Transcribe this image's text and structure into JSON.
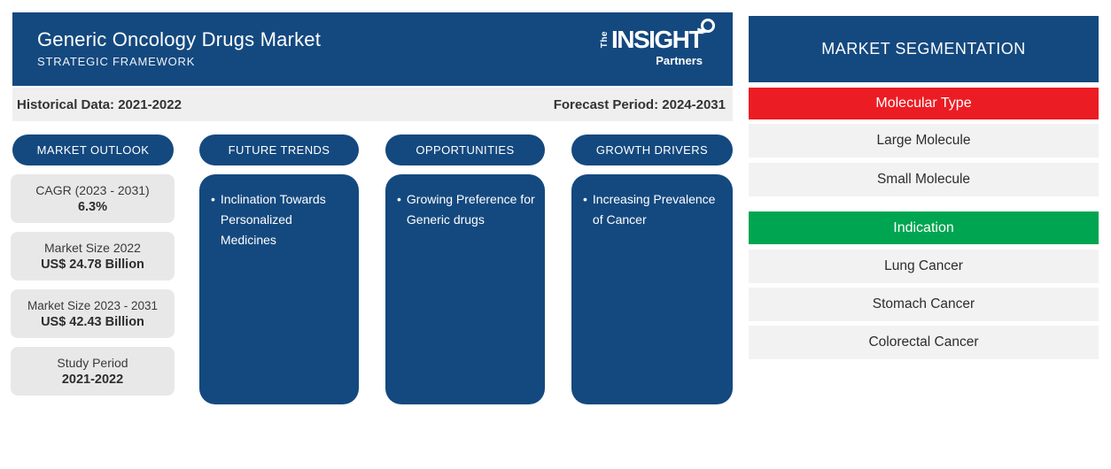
{
  "ui": {
    "bullet": "•"
  },
  "colors": {
    "primary_blue": "#14497F",
    "molecular_type_red": "#EC1C24",
    "indication_green": "#00A551"
  },
  "header": {
    "title": "Generic Oncology Drugs Market",
    "subtitle": "STRATEGIC FRAMEWORK",
    "logo": {
      "the": "The",
      "insight": "INSIGHT",
      "partners": "Partners"
    }
  },
  "period_bar": {
    "historical": "Historical Data: 2021-2022",
    "forecast": "Forecast Period: 2024-2031"
  },
  "columns": {
    "market_outlook": {
      "label": "MARKET OUTLOOK",
      "stats": [
        {
          "label": "CAGR (2023 - 2031)",
          "value": "6.3%"
        },
        {
          "label": "Market Size 2022",
          "value": "US$ 24.78 Billion"
        },
        {
          "label": "Market Size 2023 - 2031",
          "value": "US$ 42.43 Billion"
        },
        {
          "label": "Study Period",
          "value": "2021-2022"
        }
      ]
    },
    "future_trends": {
      "label": "FUTURE TRENDS",
      "bullet": "Inclination Towards Personalized Medicines"
    },
    "opportunities": {
      "label": "OPPORTUNITIES",
      "bullet": "Growing Preference for Generic drugs"
    },
    "growth_drivers": {
      "label": "GROWTH DRIVERS",
      "bullet": "Increasing Prevalence of Cancer"
    }
  },
  "segmentation": {
    "title": "MARKET SEGMENTATION",
    "groups": [
      {
        "name": "Molecular Type",
        "color": "#EC1C24",
        "items": [
          "Large Molecule",
          "Small Molecule"
        ]
      },
      {
        "name": "Indication",
        "color": "#00A551",
        "items": [
          "Lung Cancer",
          "Stomach Cancer",
          "Colorectal Cancer"
        ]
      }
    ]
  }
}
